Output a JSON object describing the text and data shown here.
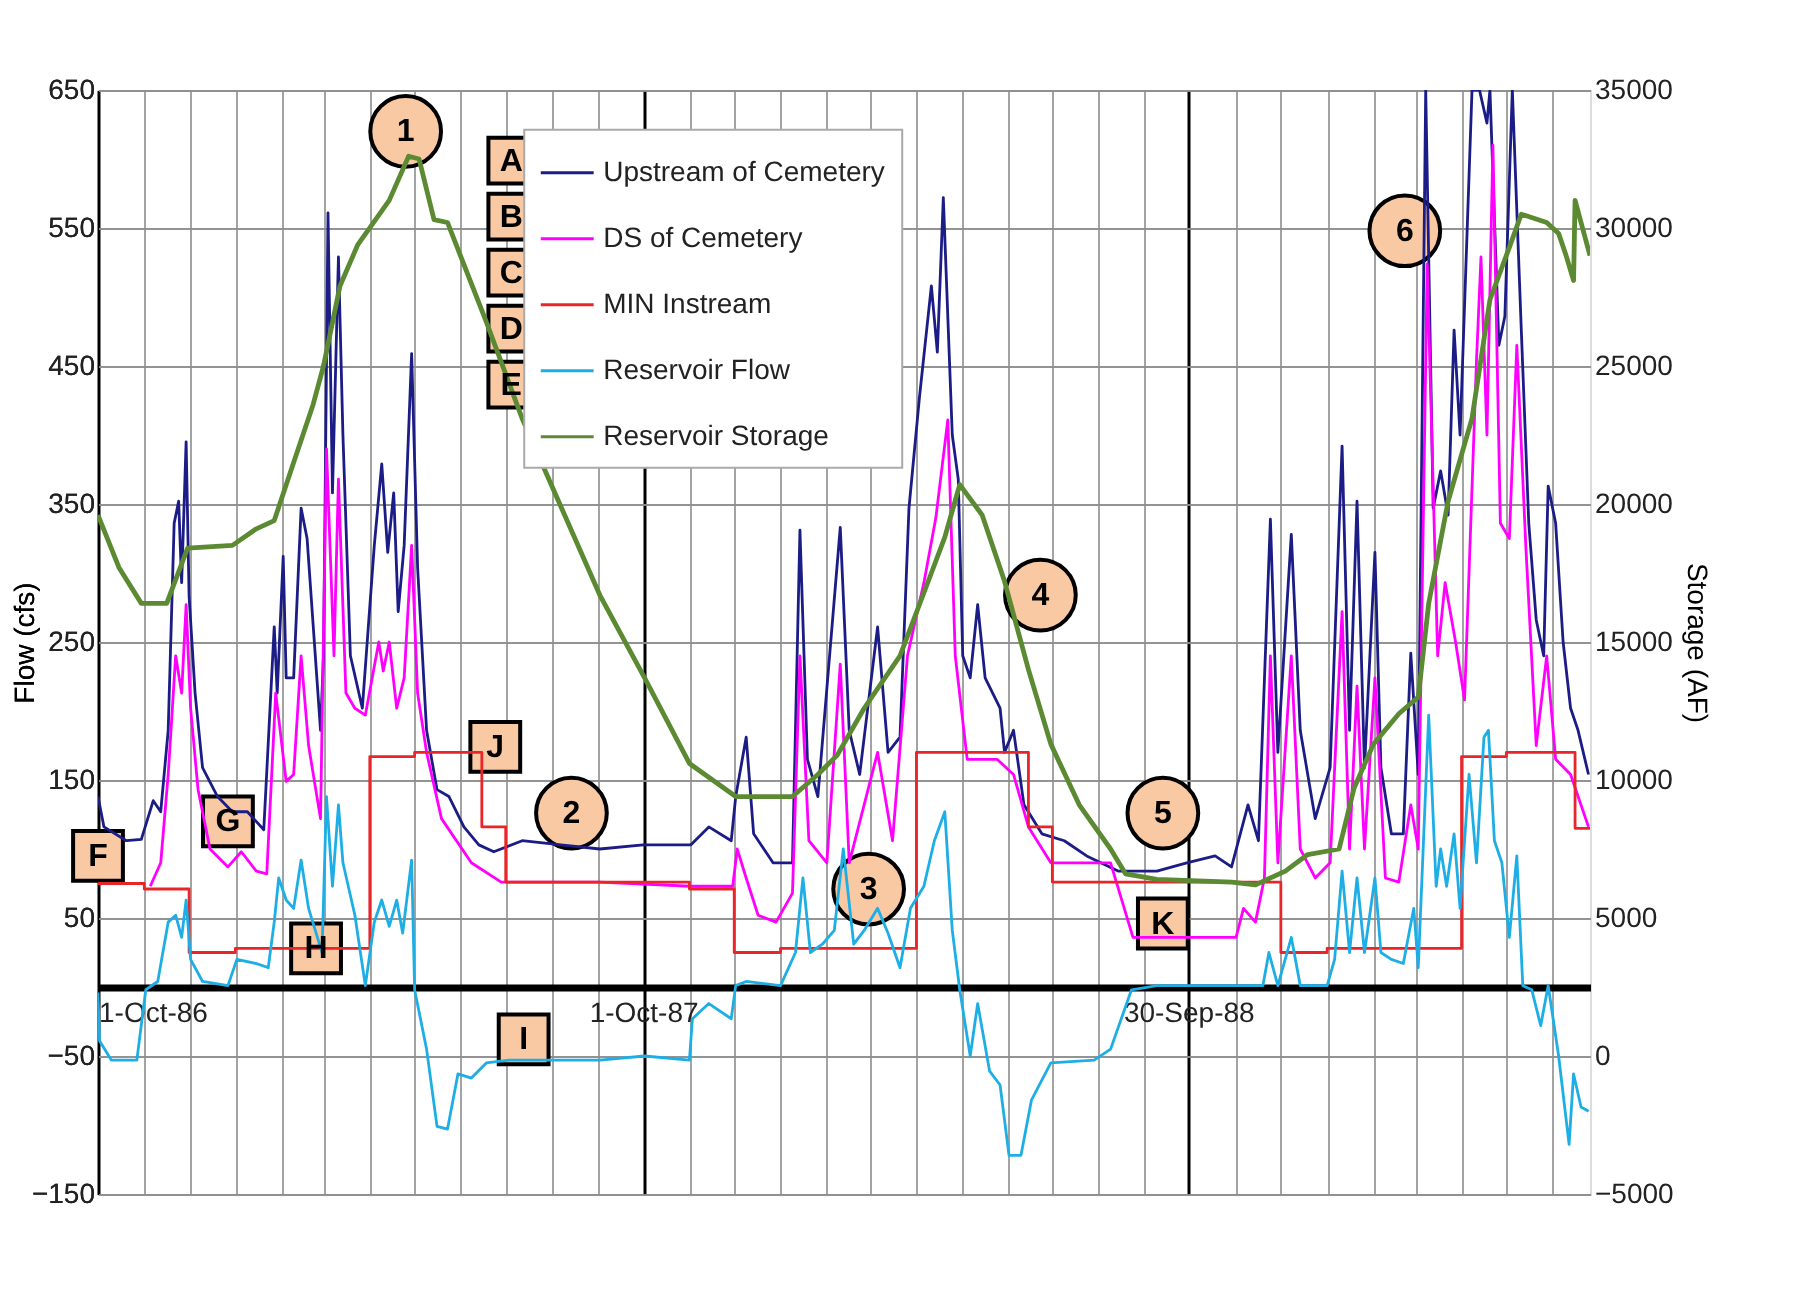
{
  "chart_data": {
    "type": "line",
    "ylabel": "Flow (cfs)",
    "y2label": "Storage (AF)",
    "xlim": [
      "1986-10-01",
      "1989-06-26"
    ],
    "xticks": [
      {
        "value": "1986-10-01",
        "label": "1-Oct-86"
      },
      {
        "value": "1986-11-01",
        "label": null
      },
      {
        "value": "1986-12-01",
        "label": null
      },
      {
        "value": "1987-01-01",
        "label": null
      },
      {
        "value": "1987-02-01",
        "label": null
      },
      {
        "value": "1987-03-01",
        "label": null
      },
      {
        "value": "1987-04-01",
        "label": null
      },
      {
        "value": "1987-05-01",
        "label": null
      },
      {
        "value": "1987-06-01",
        "label": null
      },
      {
        "value": "1987-07-01",
        "label": null
      },
      {
        "value": "1987-08-01",
        "label": null
      },
      {
        "value": "1987-09-01",
        "label": null
      },
      {
        "value": "1987-10-01",
        "label": "1-Oct-87"
      },
      {
        "value": "1987-11-01",
        "label": null
      },
      {
        "value": "1987-12-01",
        "label": null
      },
      {
        "value": "1988-01-01",
        "label": null
      },
      {
        "value": "1988-02-01",
        "label": null
      },
      {
        "value": "1988-03-01",
        "label": null
      },
      {
        "value": "1988-04-01",
        "label": null
      },
      {
        "value": "1988-05-01",
        "label": null
      },
      {
        "value": "1988-06-01",
        "label": null
      },
      {
        "value": "1988-07-01",
        "label": null
      },
      {
        "value": "1988-08-01",
        "label": null
      },
      {
        "value": "1988-09-01",
        "label": null
      },
      {
        "value": "1988-09-30",
        "label": "30-Sep-88"
      },
      {
        "value": "1988-11-01",
        "label": null
      },
      {
        "value": "1988-12-01",
        "label": null
      },
      {
        "value": "1989-01-01",
        "label": null
      },
      {
        "value": "1989-02-01",
        "label": null
      },
      {
        "value": "1989-03-01",
        "label": null
      },
      {
        "value": "1989-04-01",
        "label": null
      },
      {
        "value": "1989-05-01",
        "label": null
      },
      {
        "value": "1989-06-01",
        "label": null
      }
    ],
    "ylim": [
      -150,
      650
    ],
    "yticks": [
      -150,
      -50,
      50,
      150,
      250,
      350,
      450,
      550,
      650
    ],
    "y2lim": [
      -5000,
      35000
    ],
    "y2ticks": [
      -5000,
      0,
      5000,
      10000,
      15000,
      20000,
      25000,
      30000,
      35000
    ],
    "grid": true,
    "legend": "top",
    "series": [
      {
        "name": "Upstream of Cemetery",
        "color": "#1c1c86",
        "x": [
          "1986-10-01",
          "1986-10-05",
          "1986-10-20",
          "1986-10-30",
          "1986-11-07",
          "1986-11-12",
          "1986-11-17",
          "1986-11-21",
          "1986-11-24",
          "1986-11-26",
          "1986-11-29",
          "1986-12-01",
          "1986-12-05",
          "1986-12-10",
          "1986-12-20",
          "1986-12-30",
          "1987-01-09",
          "1987-01-20",
          "1987-01-27",
          "1987-01-29",
          "1987-02-02",
          "1987-02-04",
          "1987-02-09",
          "1987-02-14",
          "1987-02-18",
          "1987-02-27",
          "1987-03-01",
          "1987-03-04",
          "1987-03-07",
          "1987-03-11",
          "1987-03-14",
          "1987-03-19",
          "1987-03-27",
          "1987-04-04",
          "1987-04-09",
          "1987-04-13",
          "1987-04-17",
          "1987-04-20",
          "1987-04-24",
          "1987-04-29",
          "1987-05-03",
          "1987-05-09",
          "1987-05-16",
          "1987-05-24",
          "1987-06-03",
          "1987-06-13",
          "1987-06-23",
          "1987-07-12",
          "1987-08-07",
          "1987-09-02",
          "1987-10-01",
          "1987-11-02",
          "1987-11-14",
          "1987-11-29",
          "1987-12-02",
          "1987-12-09",
          "1987-12-14",
          "1987-12-27",
          "1988-01-09",
          "1988-01-14",
          "1988-01-19",
          "1988-01-26",
          "1988-02-10",
          "1988-02-16",
          "1988-02-23",
          "1988-03-06",
          "1988-03-13",
          "1988-03-21",
          "1988-03-27",
          "1988-04-03",
          "1988-04-11",
          "1988-04-15",
          "1988-04-19",
          "1988-04-25",
          "1988-04-29",
          "1988-05-02",
          "1988-05-07",
          "1988-05-12",
          "1988-05-17",
          "1988-05-27",
          "1988-05-30",
          "1988-06-05",
          "1988-06-12",
          "1988-06-24",
          "1988-07-09",
          "1988-07-24",
          "1988-08-14",
          "1988-09-09",
          "1988-09-29",
          "1988-10-18",
          "1988-10-29",
          "1988-11-09",
          "1988-11-16",
          "1988-11-24",
          "1988-11-29",
          "1988-12-08",
          "1988-12-14",
          "1988-12-24",
          "1989-01-03",
          "1989-01-11",
          "1989-01-16",
          "1989-01-21",
          "1989-01-26",
          "1989-02-02",
          "1989-02-06",
          "1989-02-13",
          "1989-02-21",
          "1989-02-26",
          "1989-03-03",
          "1989-03-08",
          "1989-03-13",
          "1989-03-18",
          "1989-03-23",
          "1989-03-27",
          "1989-03-31",
          "1989-04-08",
          "1989-04-13",
          "1989-04-18",
          "1989-04-20",
          "1989-04-26",
          "1989-04-30",
          "1989-05-05",
          "1989-05-11",
          "1989-05-16",
          "1989-05-21",
          "1989-05-26",
          "1989-05-29",
          "1989-06-03",
          "1989-06-08",
          "1989-06-13",
          "1989-06-18",
          "1989-06-25"
        ],
        "values": [
          138,
          116,
          106,
          107,
          135,
          127,
          186,
          336,
          352,
          293,
          395,
          283,
          213,
          159,
          138,
          127,
          127,
          114,
          261,
          213,
          312,
          224,
          224,
          347,
          325,
          186,
          240,
          561,
          358,
          529,
          400,
          240,
          202,
          320,
          379,
          315,
          358,
          272,
          320,
          459,
          304,
          186,
          143,
          138,
          116,
          103,
          98,
          106,
          103,
          100,
          103,
          103,
          116,
          106,
          138,
          181,
          111,
          90,
          90,
          331,
          165,
          138,
          333,
          186,
          154,
          261,
          170,
          181,
          347,
          427,
          508,
          460,
          572,
          400,
          368,
          240,
          224,
          277,
          224,
          202,
          170,
          186,
          132,
          111,
          106,
          95,
          84,
          84,
          90,
          95,
          87,
          132,
          106,
          339,
          170,
          328,
          186,
          122,
          159,
          392,
          186,
          352,
          159,
          315,
          159,
          111,
          111,
          242,
          154,
          650,
          347,
          374,
          342,
          476,
          400,
          650,
          650,
          626,
          650,
          465,
          486,
          650,
          476,
          336,
          266,
          240,
          363,
          336,
          250,
          202,
          186,
          154
        ]
      },
      {
        "name": "DS of Cemetery",
        "color": "#ff00ff",
        "x": [
          "1986-11-05",
          "1986-11-12",
          "1986-11-17",
          "1986-11-22",
          "1986-11-26",
          "1986-11-29",
          "1986-12-02",
          "1986-12-07",
          "1986-12-15",
          "1986-12-27",
          "1987-01-05",
          "1987-01-15",
          "1987-01-22",
          "1987-01-28",
          "1987-02-04",
          "1987-02-09",
          "1987-02-14",
          "1987-02-19",
          "1987-02-27",
          "1987-03-03",
          "1987-03-08",
          "1987-03-11",
          "1987-03-16",
          "1987-03-22",
          "1987-03-29",
          "1987-04-07",
          "1987-04-10",
          "1987-04-14",
          "1987-04-19",
          "1987-04-24",
          "1987-04-29",
          "1987-05-03",
          "1987-05-09",
          "1987-05-19",
          "1987-06-08",
          "1987-06-28",
          "1987-09-02",
          "1987-11-02",
          "1987-11-30",
          "1987-12-03",
          "1987-12-09",
          "1987-12-17",
          "1987-12-29",
          "1988-01-09",
          "1988-01-14",
          "1988-01-20",
          "1988-02-01",
          "1988-02-10",
          "1988-02-16",
          "1988-03-06",
          "1988-03-16",
          "1988-03-26",
          "1988-04-06",
          "1988-04-14",
          "1988-04-22",
          "1988-04-27",
          "1988-05-05",
          "1988-05-15",
          "1988-05-25",
          "1988-06-05",
          "1988-06-15",
          "1988-06-30",
          "1988-08-09",
          "1988-08-24",
          "1988-11-01",
          "1988-11-06",
          "1988-11-14",
          "1988-11-20",
          "1988-11-24",
          "1988-11-29",
          "1988-12-08",
          "1988-12-14",
          "1988-12-24",
          "1989-01-03",
          "1989-01-11",
          "1989-01-16",
          "1989-01-21",
          "1989-01-26",
          "1989-02-02",
          "1989-02-09",
          "1989-02-18",
          "1989-02-26",
          "1989-03-03",
          "1989-03-09",
          "1989-03-16",
          "1989-03-21",
          "1989-03-28",
          "1989-04-03",
          "1989-04-11",
          "1989-04-14",
          "1989-04-18",
          "1989-04-22",
          "1989-04-27",
          "1989-05-03",
          "1989-05-08",
          "1989-05-14",
          "1989-05-21",
          "1989-05-28",
          "1989-06-03",
          "1989-06-13",
          "1989-06-25"
        ],
        "values": [
          73,
          90,
          154,
          240,
          213,
          277,
          202,
          143,
          100,
          87,
          98,
          84,
          82,
          213,
          149,
          154,
          240,
          175,
          122,
          390,
          240,
          368,
          213,
          202,
          197,
          250,
          229,
          250,
          202,
          224,
          320,
          213,
          170,
          122,
          90,
          76,
          76,
          73,
          73,
          100,
          79,
          52,
          47,
          68,
          240,
          106,
          90,
          234,
          90,
          170,
          106,
          240,
          293,
          340,
          411,
          240,
          165,
          165,
          165,
          154,
          116,
          90,
          90,
          36,
          36,
          57,
          47,
          79,
          240,
          90,
          240,
          100,
          79,
          90,
          272,
          100,
          218,
          100,
          224,
          79,
          76,
          132,
          100,
          524,
          240,
          293,
          250,
          208,
          454,
          529,
          400,
          610,
          336,
          325,
          465,
          320,
          175,
          240,
          165,
          154,
          116
        ]
      },
      {
        "name": "MIN Instream",
        "color": "#e8262a",
        "type": "step",
        "x": [
          "1986-10-01",
          "1986-11-01",
          "1986-12-01",
          "1987-01-01",
          "1987-04-01",
          "1987-05-01",
          "1987-06-15",
          "1987-07-01",
          "1987-11-01",
          "1987-12-01",
          "1988-01-01",
          "1988-04-01",
          "1988-06-15",
          "1988-07-01",
          "1988-12-01",
          "1989-01-01",
          "1989-04-01",
          "1989-05-01",
          "1989-06-16",
          "1989-06-26"
        ],
        "values": [
          75,
          71,
          25,
          28,
          167,
          170,
          116,
          76,
          71,
          25,
          28,
          170,
          116,
          76,
          25,
          28,
          167,
          170,
          115,
          115
        ]
      },
      {
        "name": "Reservoir Flow",
        "color": "#1eaee6",
        "x": [
          "1986-10-01",
          "1986-10-02",
          "1986-10-10",
          "1986-10-27",
          "1986-11-02",
          "1986-11-10",
          "1986-11-17",
          "1986-11-22",
          "1986-11-26",
          "1986-11-29",
          "1986-12-02",
          "1986-12-10",
          "1986-12-27",
          "1987-01-02",
          "1987-01-15",
          "1987-01-23",
          "1987-01-27",
          "1987-01-30",
          "1987-02-04",
          "1987-02-09",
          "1987-02-14",
          "1987-02-19",
          "1987-02-28",
          "1987-03-03",
          "1987-03-07",
          "1987-03-11",
          "1987-03-14",
          "1987-03-22",
          "1987-03-29",
          "1987-04-04",
          "1987-04-09",
          "1987-04-14",
          "1987-04-19",
          "1987-04-23",
          "1987-04-29",
          "1987-05-01",
          "1987-05-09",
          "1987-05-16",
          "1987-05-23",
          "1987-05-30",
          "1987-06-08",
          "1987-06-18",
          "1987-07-03",
          "1987-09-02",
          "1987-10-02",
          "1987-11-01",
          "1987-11-03",
          "1987-11-14",
          "1987-11-29",
          "1987-12-02",
          "1987-12-09",
          "1988-01-01",
          "1988-01-11",
          "1988-01-16",
          "1988-01-21",
          "1988-01-29",
          "1988-02-06",
          "1988-02-12",
          "1988-02-19",
          "1988-02-26",
          "1988-03-06",
          "1988-03-13",
          "1988-03-21",
          "1988-03-28",
          "1988-04-06",
          "1988-04-13",
          "1988-04-20",
          "1988-04-25",
          "1988-04-30",
          "1988-05-07",
          "1988-05-12",
          "1988-05-20",
          "1988-05-27",
          "1988-06-02",
          "1988-06-10",
          "1988-06-17",
          "1988-06-30",
          "1988-07-29",
          "1988-08-09",
          "1988-08-23",
          "1988-09-09",
          "1988-11-19",
          "1988-11-23",
          "1988-11-29",
          "1988-12-08",
          "1988-12-14",
          "1989-01-01",
          "1989-01-06",
          "1989-01-11",
          "1989-01-16",
          "1989-01-21",
          "1989-01-26",
          "1989-02-02",
          "1989-02-06",
          "1989-02-13",
          "1989-02-21",
          "1989-02-28",
          "1989-03-03",
          "1989-03-10",
          "1989-03-15",
          "1989-03-18",
          "1989-03-22",
          "1989-03-27",
          "1989-03-31",
          "1989-04-06",
          "1989-04-11",
          "1989-04-16",
          "1989-04-19",
          "1989-04-23",
          "1989-04-28",
          "1989-05-03",
          "1989-05-08",
          "1989-05-12",
          "1989-05-18",
          "1989-05-24",
          "1989-05-29",
          "1989-06-05",
          "1989-06-12",
          "1989-06-15",
          "1989-06-20",
          "1989-06-25"
        ],
        "values": [
          -4,
          -39,
          -53,
          -53,
          -2,
          4,
          47,
          52,
          36,
          63,
          20,
          4,
          1,
          20,
          17,
          14,
          47,
          79,
          63,
          57,
          92,
          57,
          25,
          138,
          73,
          132,
          90,
          52,
          1,
          47,
          63,
          44,
          63,
          39,
          92,
          -2,
          -45,
          -101,
          -103,
          -63,
          -66,
          -55,
          -53,
          -53,
          -50,
          -53,
          -23,
          -12,
          -23,
          1,
          4,
          1,
          25,
          79,
          25,
          31,
          41,
          100,
          31,
          41,
          57,
          39,
          14,
          57,
          73,
          106,
          127,
          41,
          -2,
          -50,
          -12,
          -61,
          -71,
          -122,
          -122,
          -82,
          -55,
          -53,
          -45,
          -2,
          1,
          1,
          25,
          1,
          36,
          1,
          1,
          20,
          84,
          25,
          79,
          25,
          79,
          25,
          20,
          17,
          57,
          14,
          197,
          73,
          100,
          73,
          111,
          57,
          154,
          90,
          181,
          186,
          106,
          90,
          36,
          95,
          1,
          -2,
          -28,
          1,
          -50,
          -114,
          -63,
          -87,
          -90
        ]
      },
      {
        "name": "Reservoir Storage",
        "color": "#5b8a32",
        "axis": "y2",
        "x": [
          "1986-10-01",
          "1986-10-15",
          "1986-10-30",
          "1986-11-16",
          "1986-11-30",
          "1986-12-30",
          "1987-01-15",
          "1987-01-27",
          "1987-02-09",
          "1987-02-22",
          "1987-03-01",
          "1987-03-12",
          "1987-03-24",
          "1987-04-14",
          "1987-04-27",
          "1987-05-04",
          "1987-05-14",
          "1987-05-23",
          "1987-06-18",
          "1987-07-12",
          "1987-08-07",
          "1987-09-02",
          "1987-10-02",
          "1987-11-01",
          "1987-12-02",
          "1988-01-09",
          "1988-01-26",
          "1988-02-08",
          "1988-02-26",
          "1988-03-21",
          "1988-04-11",
          "1988-04-20",
          "1988-04-30",
          "1988-05-15",
          "1988-05-30",
          "1988-06-15",
          "1988-06-30",
          "1988-07-19",
          "1988-08-09",
          "1988-08-19",
          "1988-09-09",
          "1988-10-29",
          "1988-11-14",
          "1988-12-04",
          "1988-12-19",
          "1989-01-09",
          "1989-01-19",
          "1989-02-01",
          "1989-02-18",
          "1989-03-03",
          "1989-03-10",
          "1989-03-23",
          "1989-04-08",
          "1989-04-20",
          "1989-05-03",
          "1989-05-11",
          "1989-05-28",
          "1989-06-05",
          "1989-06-10",
          "1989-06-15",
          "1989-06-16",
          "1989-06-26"
        ],
        "values": [
          19600,
          17700,
          16400,
          16400,
          18400,
          18500,
          19100,
          19400,
          21500,
          23600,
          25000,
          27900,
          29400,
          31000,
          32600,
          32500,
          30300,
          30200,
          26600,
          23100,
          19900,
          16700,
          13700,
          10600,
          9400,
          9400,
          10200,
          10900,
          12600,
          14500,
          17500,
          18800,
          20700,
          19600,
          17200,
          14000,
          11300,
          9100,
          7500,
          6600,
          6400,
          6300,
          6200,
          6700,
          7300,
          7500,
          9700,
          11300,
          12400,
          13000,
          16400,
          20100,
          23100,
          27400,
          29300,
          30500,
          30200,
          29800,
          29000,
          28100,
          31000,
          29000
        ]
      }
    ],
    "annotations": [
      "A",
      "B",
      "C",
      "D",
      "E",
      {
        "text": "1",
        "x": "1987-04-25",
        "y": 620
      },
      {
        "text": "2",
        "x": "1987-08-14",
        "y": 126
      },
      {
        "text": "3",
        "x": "1988-02-29",
        "y": 71
      },
      {
        "text": "4",
        "x": "1988-06-23",
        "y": 284
      },
      {
        "text": "5",
        "x": "1988-09-13",
        "y": 126
      },
      {
        "text": "6",
        "x": "1989-02-22",
        "y": 548
      },
      {
        "text": "F",
        "x": "1986-10-01",
        "y": 95
      },
      {
        "text": "G",
        "x": "1986-12-27",
        "y": 120
      },
      {
        "text": "H",
        "x": "1987-02-24",
        "y": 28
      },
      {
        "text": "I",
        "x": "1987-07-13",
        "y": -38
      },
      {
        "text": "J",
        "x": "1987-06-24",
        "y": 174
      },
      {
        "text": "K",
        "x": "1988-09-13",
        "y": 46
      }
    ]
  }
}
